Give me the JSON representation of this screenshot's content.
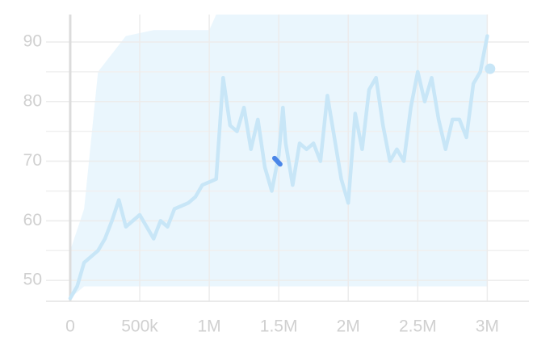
{
  "chart_data": {
    "type": "line",
    "xlim": [
      -174000,
      3300000
    ],
    "ylim": [
      46.5,
      94.6
    ],
    "xticks": [
      0,
      {
        "value": 500000,
        "label": "500k"
      },
      {
        "value": 1000000,
        "label": "1M"
      },
      {
        "value": 1500000,
        "label": "1.5M"
      },
      {
        "value": 2000000,
        "label": "2M"
      },
      {
        "value": 2500000,
        "label": "2.5M"
      },
      {
        "value": 3000000,
        "label": "3M"
      }
    ],
    "yticks": [
      50,
      60,
      70,
      80,
      90
    ],
    "minor_yticks": [
      55,
      65,
      75,
      85
    ],
    "grid": true,
    "band": {
      "color": "#eaf6fd",
      "x": [
        0,
        100000,
        200000,
        400000,
        600000,
        800000,
        1000000,
        1050000,
        1500000,
        2000000,
        2500000,
        3000000
      ],
      "lower": [
        47,
        49,
        49,
        49,
        49,
        49,
        49,
        49,
        49,
        49,
        49,
        49
      ],
      "upper": [
        55,
        62,
        85,
        91,
        92,
        92,
        92,
        94.6,
        94.6,
        94.6,
        94.6,
        94.6
      ]
    },
    "series": [
      {
        "color": "#c8e6f7",
        "x": [
          0,
          50000,
          100000,
          150000,
          200000,
          250000,
          300000,
          350000,
          400000,
          450000,
          500000,
          550000,
          600000,
          650000,
          700000,
          750000,
          800000,
          850000,
          900000,
          950000,
          1000000,
          1050000,
          1100000,
          1150000,
          1200000,
          1250000,
          1300000,
          1350000,
          1400000,
          1450000,
          1500000,
          1530000,
          1550000,
          1600000,
          1650000,
          1700000,
          1750000,
          1800000,
          1850000,
          1900000,
          1950000,
          2000000,
          2050000,
          2100000,
          2150000,
          2200000,
          2250000,
          2300000,
          2350000,
          2400000,
          2450000,
          2500000,
          2550000,
          2600000,
          2650000,
          2700000,
          2750000,
          2800000,
          2850000,
          2900000,
          2950000,
          3000000
        ],
        "values": [
          47,
          49,
          53,
          54,
          55,
          57,
          60,
          63.5,
          59,
          60,
          61,
          59,
          57,
          60,
          59,
          62,
          62.5,
          63,
          64,
          66,
          66.5,
          67,
          84,
          76,
          75,
          79,
          72,
          77,
          69,
          65,
          71,
          79,
          73,
          66,
          73,
          72,
          73,
          70,
          81,
          74,
          67,
          63,
          78,
          72,
          82,
          84,
          76,
          70,
          72,
          70,
          79,
          85,
          80,
          84,
          77,
          72,
          77,
          77,
          74,
          83,
          85,
          91
        ]
      },
      {
        "color": "#4a86e8",
        "x": [
          1470000,
          1510000
        ],
        "values": [
          70.5,
          69.5
        ]
      }
    ],
    "end_point": {
      "x": 3020000,
      "y": 85.5,
      "color": "#c8e6f7"
    }
  }
}
